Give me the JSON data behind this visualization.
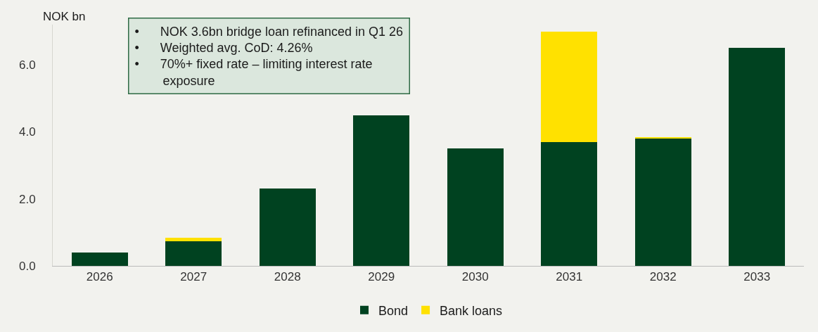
{
  "chart_data": {
    "type": "bar",
    "ylabel": "NOK bn",
    "categories": [
      "2026",
      "2027",
      "2028",
      "2029",
      "2030",
      "2031",
      "2032",
      "2033"
    ],
    "series": [
      {
        "name": "Bond",
        "color": "#004220",
        "values": [
          0.4,
          0.74,
          2.3,
          4.5,
          3.5,
          3.7,
          3.8,
          6.5
        ]
      },
      {
        "name": "Bank loans",
        "color": "#ffe100",
        "values": [
          0,
          0.1,
          0,
          0,
          0,
          3.3,
          0.05,
          0
        ]
      }
    ],
    "stacked": true,
    "ylim": [
      0,
      7.2
    ],
    "yticks": [
      {
        "value": 0,
        "label": "0.0"
      },
      {
        "value": 2,
        "label": "2.0"
      },
      {
        "value": 4,
        "label": "4.0"
      },
      {
        "value": 6,
        "label": "6.0"
      }
    ],
    "grid": false,
    "legend": "bottom",
    "annotations": [
      "•      NOK 3.6bn bridge loan refinanced in Q1 26\n•      Weighted avg. CoD: 4.26%\n•      70%+ fixed rate – limiting interest rate\n        exposure"
    ]
  }
}
